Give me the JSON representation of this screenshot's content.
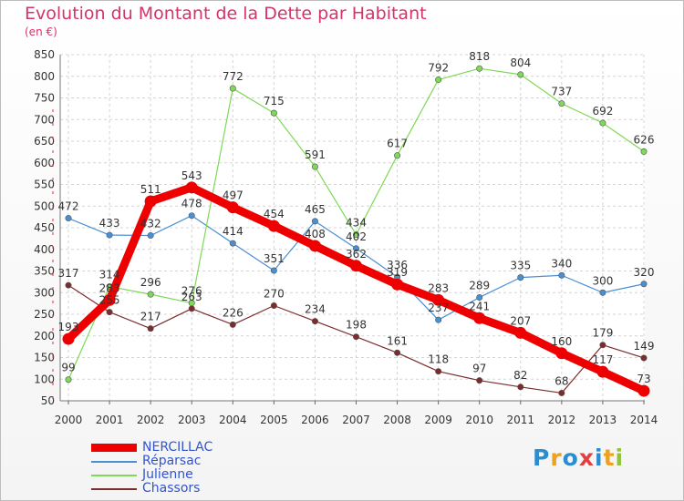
{
  "title": "Evolution du Montant de la Dette par Habitant",
  "subtitle": "(en €)",
  "brand": {
    "letters": [
      "P",
      "r",
      "o",
      "x",
      "i",
      "t",
      "i"
    ],
    "colors": [
      "#2d8ccf",
      "#f0a020",
      "#2d8ccf",
      "#e04040",
      "#2d8ccf",
      "#f0a020",
      "#8fc43c"
    ]
  },
  "chart_data": {
    "type": "line",
    "title": "Evolution du Montant de la Dette par Habitant",
    "subtitle": "(en €)",
    "x": [
      "2000",
      "2001",
      "2002",
      "2003",
      "2004",
      "2005",
      "2006",
      "2007",
      "2008",
      "2009",
      "2010",
      "2011",
      "2012",
      "2013",
      "2014"
    ],
    "ylim": [
      50,
      850
    ],
    "yticks": [
      50,
      100,
      150,
      200,
      250,
      300,
      350,
      400,
      450,
      500,
      550,
      600,
      650,
      700,
      750,
      800,
      850
    ],
    "grid": true,
    "legend_placement": "bottom-left",
    "series": [
      {
        "name": "NERCILLAC",
        "color": "#ee0000",
        "thick": true,
        "values": [
          193,
          283,
          511,
          543,
          497,
          454,
          408,
          362,
          319,
          283,
          241,
          207,
          160,
          117,
          73
        ]
      },
      {
        "name": "Réparsac",
        "color": "#4a8fd4",
        "thick": false,
        "values": [
          472,
          433,
          432,
          478,
          414,
          351,
          465,
          402,
          336,
          237,
          289,
          335,
          340,
          300,
          320
        ]
      },
      {
        "name": "Julienne",
        "color": "#7ed957",
        "thick": false,
        "values": [
          99,
          314,
          296,
          276,
          772,
          715,
          591,
          434,
          617,
          792,
          818,
          804,
          737,
          692,
          626
        ]
      },
      {
        "name": "Chassors",
        "color": "#7b2c2c",
        "thick": false,
        "values": [
          317,
          255,
          217,
          263,
          226,
          270,
          234,
          198,
          161,
          118,
          97,
          82,
          68,
          179,
          149
        ]
      }
    ]
  }
}
